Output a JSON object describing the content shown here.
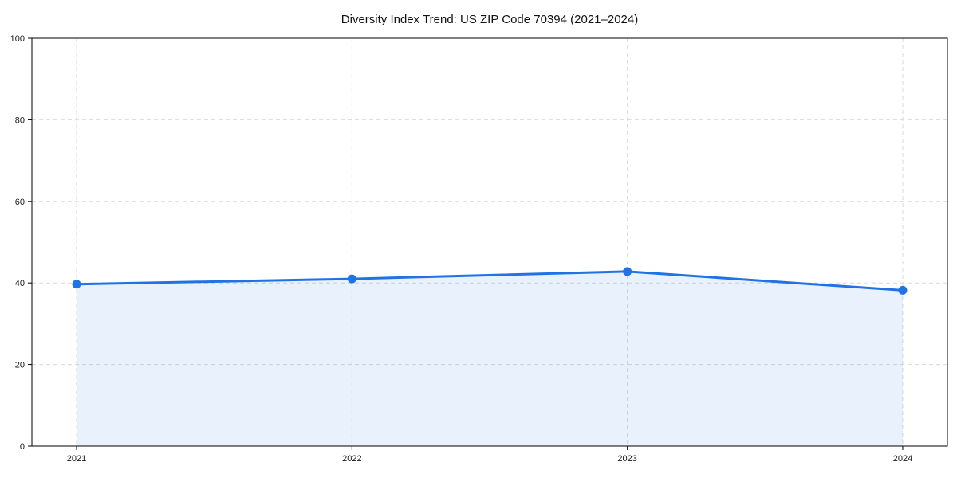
{
  "chart_data": {
    "type": "area",
    "title": "Diversity Index Trend: US ZIP Code 70394 (2021–2024)",
    "series_name": "Diversity Index",
    "categories": [
      "2021",
      "2022",
      "2023",
      "2024"
    ],
    "values": [
      39.7,
      41.0,
      42.8,
      38.2
    ],
    "xlabel": "",
    "ylabel": "",
    "ylim": [
      0,
      100
    ],
    "yticks": [
      0,
      20,
      40,
      60,
      80,
      100
    ],
    "grid": "dashed, both axes",
    "legend": false,
    "colors": {
      "line": "#2172e5",
      "marker": "#2172e5",
      "fill": "rgba(33,114,229,0.10)",
      "gridline": "#d9d9d9",
      "axis_border": "#000000",
      "background": "#ffffff",
      "title_text": "#111111",
      "tick_text": "#1a1a1a"
    }
  }
}
